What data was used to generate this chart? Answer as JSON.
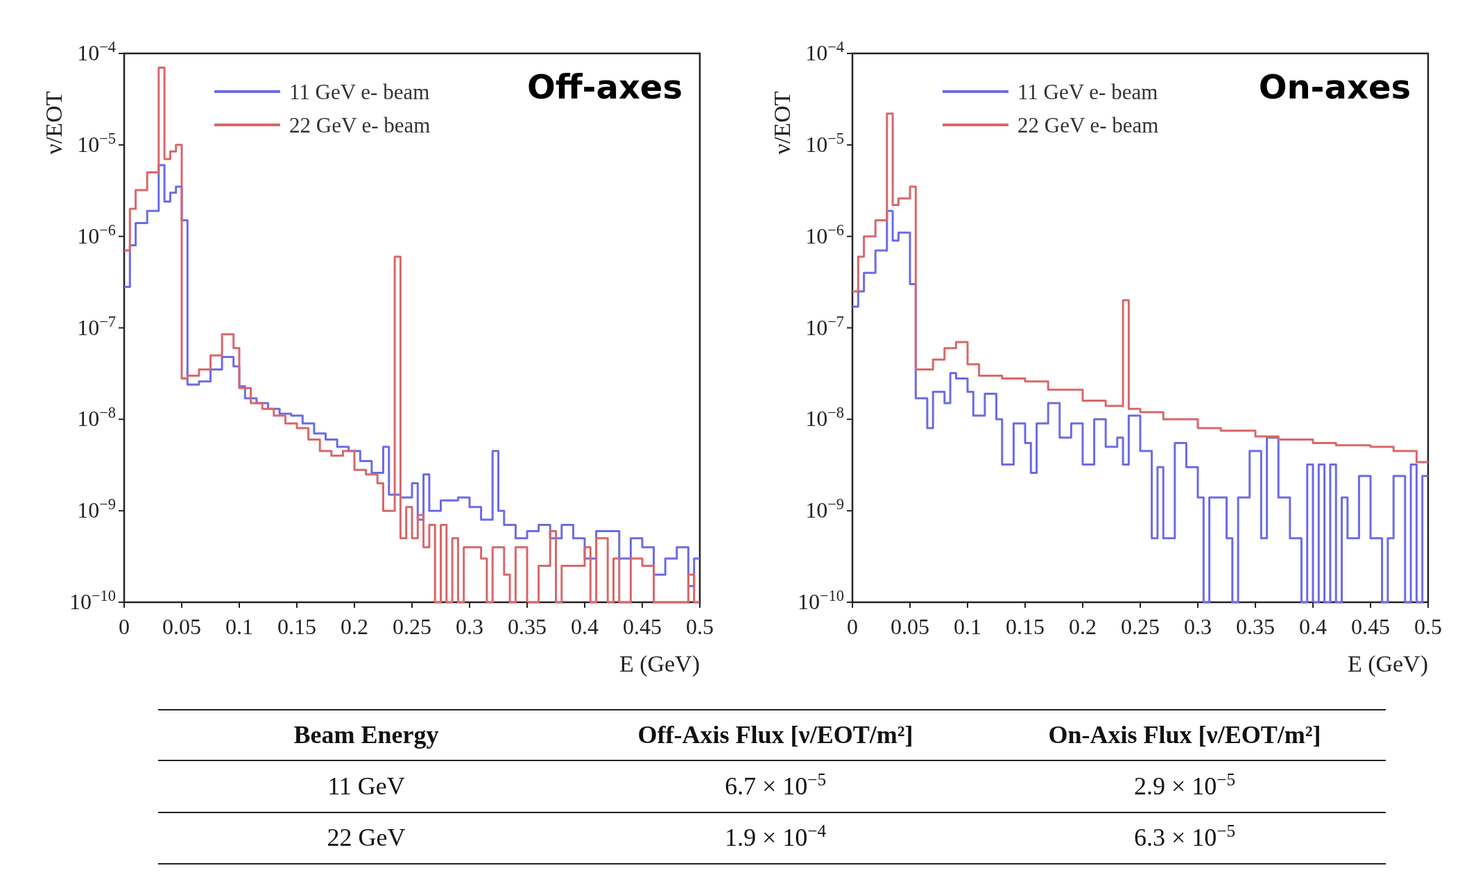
{
  "chart_data": [
    {
      "type": "step",
      "title": "Off-axes",
      "xlabel": "E (GeV)",
      "ylabel": "ν/EOT",
      "log": true,
      "legend": "top left",
      "xlim": [
        0,
        0.5
      ],
      "xticks": [
        0,
        0.05,
        0.1,
        0.15,
        0.2,
        0.25,
        0.3,
        0.35,
        0.4,
        0.45,
        0.5
      ],
      "ylim": [
        1e-10,
        0.0001
      ],
      "yticks": [
        {
          "value": 1e-10,
          "label": "10$^{−10}$"
        },
        {
          "value": 1e-09,
          "label": "10$^{−9}$"
        },
        {
          "value": 1e-08,
          "label": "10$^{−8}$"
        },
        {
          "value": 1e-07,
          "label": "10$^{−7}$"
        },
        {
          "value": 1e-06,
          "label": "10$^{−6}$"
        },
        {
          "value": 1e-05,
          "label": "10$^{−5}$"
        },
        {
          "value": 0.0001,
          "label": "10$^{−4}$"
        }
      ],
      "series": [
        {
          "name": "11 GeV e- beam",
          "color": "#6b6be6",
          "x": [
            0,
            0.005,
            0.01,
            0.02,
            0.03,
            0.035,
            0.04,
            0.045,
            0.05,
            0.055,
            0.065,
            0.075,
            0.085,
            0.095,
            0.1,
            0.105,
            0.115,
            0.125,
            0.135,
            0.145,
            0.155,
            0.165,
            0.175,
            0.185,
            0.195,
            0.205,
            0.215,
            0.225,
            0.23,
            0.24,
            0.25,
            0.255,
            0.26,
            0.265,
            0.275,
            0.29,
            0.3,
            0.31,
            0.32,
            0.325,
            0.33,
            0.34,
            0.35,
            0.36,
            0.37,
            0.38,
            0.39,
            0.4,
            0.41,
            0.42,
            0.43,
            0.44,
            0.45,
            0.46,
            0.47,
            0.48,
            0.49,
            0.495,
            0.5
          ],
          "values": [
            2.8e-07,
            8e-07,
            1.4e-06,
            1.9e-06,
            6e-06,
            2.4e-06,
            3e-06,
            3.5e-06,
            1.5e-06,
            2.4e-08,
            2.6e-08,
            3.5e-08,
            4.8e-08,
            3.8e-08,
            2.3e-08,
            1.7e-08,
            1.5e-08,
            1.3e-08,
            1.15e-08,
            1.1e-08,
            9e-09,
            7e-09,
            6e-09,
            5e-09,
            4.5e-09,
            3.5e-09,
            2.6e-09,
            5e-09,
            1.5e-09,
            1.4e-09,
            2e-09,
            8e-10,
            2.5e-09,
            1e-09,
            1.3e-09,
            1.4e-09,
            1.1e-09,
            8e-10,
            4.5e-09,
            1e-09,
            7e-10,
            5e-10,
            6e-10,
            7e-10,
            5e-10,
            7e-10,
            5e-10,
            3e-10,
            6e-10,
            6e-10,
            3e-10,
            5e-10,
            4e-10,
            2e-10,
            3e-10,
            4e-10,
            1.5e-10,
            3e-10,
            3e-10
          ]
        },
        {
          "name": "22 GeV e- beam",
          "color": "#d9676a",
          "x": [
            0,
            0.005,
            0.01,
            0.02,
            0.03,
            0.035,
            0.04,
            0.045,
            0.05,
            0.055,
            0.065,
            0.075,
            0.085,
            0.095,
            0.1,
            0.11,
            0.12,
            0.13,
            0.14,
            0.15,
            0.16,
            0.17,
            0.18,
            0.19,
            0.2,
            0.21,
            0.22,
            0.225,
            0.235,
            0.24,
            0.245,
            0.25,
            0.255,
            0.26,
            0.265,
            0.27,
            0.275,
            0.28,
            0.285,
            0.29,
            0.295,
            0.31,
            0.315,
            0.32,
            0.33,
            0.335,
            0.34,
            0.35,
            0.36,
            0.37,
            0.375,
            0.38,
            0.4,
            0.405,
            0.41,
            0.42,
            0.425,
            0.43,
            0.44,
            0.45,
            0.46,
            0.49,
            0.495,
            0.5
          ],
          "values": [
            7e-07,
            2e-06,
            3.2e-06,
            5e-06,
            7e-05,
            7e-06,
            8.5e-06,
            1e-05,
            2.8e-08,
            3e-08,
            3.5e-08,
            5e-08,
            8.5e-08,
            6e-08,
            2.2e-08,
            1.5e-08,
            1.3e-08,
            1.1e-08,
            9e-09,
            8e-09,
            6e-09,
            4.5e-09,
            4e-09,
            4.5e-09,
            2.8e-09,
            2.5e-09,
            2e-09,
            1e-09,
            6e-07,
            5e-10,
            1.1e-09,
            5e-10,
            9e-10,
            4e-10,
            7e-10,
            1e-10,
            7e-10,
            1e-10,
            5e-10,
            1e-10,
            4e-10,
            3e-10,
            1e-10,
            4e-10,
            2e-10,
            1e-10,
            4e-10,
            1e-10,
            2.5e-10,
            6e-10,
            1e-10,
            2.5e-10,
            4e-10,
            1e-10,
            5e-10,
            1e-10,
            3e-10,
            1e-10,
            3e-10,
            2.5e-10,
            1e-10,
            2e-10,
            1e-10,
            1e-10
          ]
        }
      ]
    },
    {
      "type": "step",
      "title": "On-axes",
      "xlabel": "E (GeV)",
      "ylabel": "ν/EOT",
      "log": true,
      "legend": "top left",
      "xlim": [
        0,
        0.5
      ],
      "xticks": [
        0,
        0.05,
        0.1,
        0.15,
        0.2,
        0.25,
        0.3,
        0.35,
        0.4,
        0.45,
        0.5
      ],
      "ylim": [
        1e-10,
        0.0001
      ],
      "yticks": [
        {
          "value": 1e-10,
          "label": "10$^{−10}$"
        },
        {
          "value": 1e-09,
          "label": "10$^{−9}$"
        },
        {
          "value": 1e-08,
          "label": "10$^{−8}$"
        },
        {
          "value": 1e-07,
          "label": "10$^{−7}$"
        },
        {
          "value": 1e-06,
          "label": "10$^{−6}$"
        },
        {
          "value": 1e-05,
          "label": "10$^{−5}$"
        },
        {
          "value": 0.0001,
          "label": "10$^{−4}$"
        }
      ],
      "series": [
        {
          "name": "11 GeV e- beam",
          "color": "#6b6be6",
          "x": [
            0,
            0.005,
            0.01,
            0.02,
            0.03,
            0.035,
            0.04,
            0.05,
            0.055,
            0.065,
            0.07,
            0.08,
            0.085,
            0.09,
            0.1,
            0.105,
            0.115,
            0.125,
            0.13,
            0.14,
            0.15,
            0.155,
            0.16,
            0.17,
            0.18,
            0.19,
            0.2,
            0.21,
            0.22,
            0.23,
            0.235,
            0.24,
            0.25,
            0.26,
            0.265,
            0.27,
            0.28,
            0.29,
            0.3,
            0.305,
            0.31,
            0.325,
            0.33,
            0.335,
            0.345,
            0.355,
            0.36,
            0.37,
            0.38,
            0.39,
            0.395,
            0.4,
            0.405,
            0.41,
            0.415,
            0.42,
            0.425,
            0.43,
            0.44,
            0.45,
            0.46,
            0.465,
            0.47,
            0.48,
            0.485,
            0.49,
            0.495,
            0.5
          ],
          "values": [
            1.7e-07,
            2.5e-07,
            4e-07,
            7e-07,
            1.9e-06,
            9e-07,
            1.1e-06,
            3e-07,
            1.7e-08,
            8e-09,
            2e-08,
            1.5e-08,
            3.2e-08,
            2.8e-08,
            2e-08,
            1.1e-08,
            1.9e-08,
            1e-08,
            3.2e-09,
            9e-09,
            5.5e-09,
            2.6e-09,
            9e-09,
            1.5e-08,
            6.3e-09,
            9e-09,
            3.2e-09,
            1e-08,
            5e-09,
            6.3e-09,
            3.2e-09,
            1.1e-08,
            4.5e-09,
            5e-10,
            3e-09,
            5e-10,
            5.5e-09,
            3e-09,
            1.4e-09,
            1e-10,
            1.4e-09,
            5e-10,
            1e-10,
            1.4e-09,
            4.5e-09,
            5e-10,
            6.3e-09,
            1.4e-09,
            5e-10,
            1e-10,
            3.2e-09,
            1e-10,
            3.2e-09,
            1e-10,
            3.2e-09,
            1e-10,
            1.4e-09,
            5e-10,
            2.4e-09,
            5e-10,
            1e-10,
            5e-10,
            2.4e-09,
            1e-10,
            3.2e-09,
            1e-10,
            2.4e-09,
            2.4e-09
          ]
        },
        {
          "name": "22 GeV e- beam",
          "color": "#d9676a",
          "x": [
            0,
            0.005,
            0.01,
            0.02,
            0.03,
            0.035,
            0.04,
            0.05,
            0.055,
            0.07,
            0.08,
            0.09,
            0.1,
            0.11,
            0.13,
            0.15,
            0.17,
            0.2,
            0.22,
            0.235,
            0.24,
            0.25,
            0.27,
            0.3,
            0.32,
            0.35,
            0.37,
            0.4,
            0.42,
            0.45,
            0.47,
            0.49,
            0.5
          ],
          "values": [
            2.5e-07,
            6e-07,
            1e-06,
            1.5e-06,
            2.2e-05,
            2.2e-06,
            2.6e-06,
            3.5e-06,
            3.5e-08,
            4.5e-08,
            6e-08,
            7e-08,
            4e-08,
            3e-08,
            2.8e-08,
            2.6e-08,
            2.1e-08,
            1.6e-08,
            1.4e-08,
            2e-07,
            1.3e-08,
            1.2e-08,
            1e-08,
            8e-09,
            7.5e-09,
            6.5e-09,
            6e-09,
            5.5e-09,
            5.2e-09,
            5e-09,
            4.5e-09,
            3.4e-09,
            3.4e-09
          ]
        }
      ]
    },
    {
      "type": "other",
      "annotations": [
        "Beam Energy",
        "Off-Axis Flux [ν/EOT/m²]",
        "On-Axis Flux [ν/EOT/m²]",
        "11 GeV",
        "6.7 × 10$^{−5}$",
        "2.9 × 10$^{−5}$",
        "22 GeV",
        "1.9 × 10$^{−4}$",
        "6.3 × 10$^{−5}$"
      ]
    }
  ]
}
